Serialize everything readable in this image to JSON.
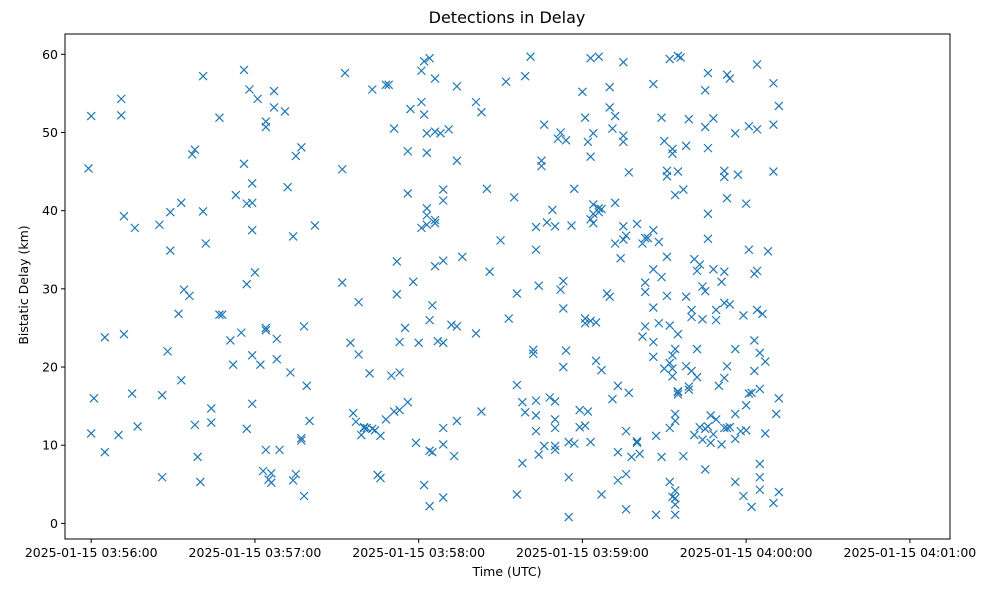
{
  "chart_data": {
    "type": "scatter",
    "title": "Detections in Delay",
    "xlabel": "Time (UTC)",
    "ylabel": "Bistatic Delay (km)",
    "x_unit": "seconds after 2025-01-15 03:56:00 UTC",
    "xlim": [
      -9.6,
      314.7
    ],
    "ylim": [
      -2.0,
      62.6
    ],
    "x_ticks": [
      {
        "value": 0,
        "label": "2025-01-15 03:56:00"
      },
      {
        "value": 60,
        "label": "2025-01-15 03:57:00"
      },
      {
        "value": 120,
        "label": "2025-01-15 03:58:00"
      },
      {
        "value": 180,
        "label": "2025-01-15 03:59:00"
      },
      {
        "value": 240,
        "label": "2025-01-15 04:00:00"
      },
      {
        "value": 300,
        "label": "2025-01-15 04:01:00"
      }
    ],
    "y_ticks": [
      {
        "value": 0,
        "label": "0"
      },
      {
        "value": 10,
        "label": "10"
      },
      {
        "value": 20,
        "label": "20"
      },
      {
        "value": 30,
        "label": "30"
      },
      {
        "value": 40,
        "label": "40"
      },
      {
        "value": 50,
        "label": "50"
      },
      {
        "value": 60,
        "label": "60"
      }
    ],
    "grid": false,
    "marker": "x",
    "color": "#1f77b4",
    "points": [
      [
        -1,
        45.4
      ],
      [
        0,
        52.1
      ],
      [
        0,
        11.5
      ],
      [
        1,
        16
      ],
      [
        5,
        9.1
      ],
      [
        5,
        23.8
      ],
      [
        10,
        11.3
      ],
      [
        11,
        54.3
      ],
      [
        11,
        52.2
      ],
      [
        12,
        24.2
      ],
      [
        12,
        39.3
      ],
      [
        15,
        16.6
      ],
      [
        16,
        37.8
      ],
      [
        17,
        12.4
      ],
      [
        25,
        38.2
      ],
      [
        26,
        16.4
      ],
      [
        26,
        5.9
      ],
      [
        28,
        22
      ],
      [
        29,
        39.8
      ],
      [
        29,
        34.9
      ],
      [
        32,
        26.8
      ],
      [
        33,
        41
      ],
      [
        33,
        18.3
      ],
      [
        34,
        29.9
      ],
      [
        36,
        29.1
      ],
      [
        37,
        47.2
      ],
      [
        38,
        47.8
      ],
      [
        38,
        12.6
      ],
      [
        39,
        8.5
      ],
      [
        40,
        5.3
      ],
      [
        41,
        39.9
      ],
      [
        41,
        57.2
      ],
      [
        42,
        35.8
      ],
      [
        44,
        12.9
      ],
      [
        44,
        14.7
      ],
      [
        47,
        51.9
      ],
      [
        47,
        26.7
      ],
      [
        48,
        26.7
      ],
      [
        51,
        23.4
      ],
      [
        52,
        20.3
      ],
      [
        53,
        42
      ],
      [
        55,
        24.4
      ],
      [
        56,
        58
      ],
      [
        56,
        46
      ],
      [
        57,
        12.1
      ],
      [
        57,
        30.6
      ],
      [
        57,
        40.9
      ],
      [
        58,
        55.5
      ],
      [
        59,
        37.5
      ],
      [
        59,
        43.5
      ],
      [
        59,
        41
      ],
      [
        59,
        21.5
      ],
      [
        59,
        15.3
      ],
      [
        60,
        32.1
      ],
      [
        61,
        54.3
      ],
      [
        62,
        20.3
      ],
      [
        63,
        6.7
      ],
      [
        64,
        51.4
      ],
      [
        64,
        50.7
      ],
      [
        64,
        24.7
      ],
      [
        64,
        25
      ],
      [
        64,
        9.4
      ],
      [
        65,
        5.6
      ],
      [
        66,
        6.4
      ],
      [
        66,
        5.2
      ],
      [
        67,
        55.3
      ],
      [
        67,
        53.2
      ],
      [
        68,
        23.6
      ],
      [
        68,
        21
      ],
      [
        69,
        9.4
      ],
      [
        71,
        52.7
      ],
      [
        72,
        43
      ],
      [
        73,
        19.3
      ],
      [
        74,
        36.7
      ],
      [
        74,
        5.5
      ],
      [
        75,
        47
      ],
      [
        75,
        6.3
      ],
      [
        77,
        48.1
      ],
      [
        77,
        10.9
      ],
      [
        77,
        10.6
      ],
      [
        78,
        3.5
      ],
      [
        78,
        25.2
      ],
      [
        79,
        17.6
      ],
      [
        80,
        13.1
      ],
      [
        82,
        38.1
      ],
      [
        92,
        45.3
      ],
      [
        92,
        30.8
      ],
      [
        93,
        57.6
      ],
      [
        95,
        23.1
      ],
      [
        96,
        14.1
      ],
      [
        97,
        13
      ],
      [
        98,
        21.6
      ],
      [
        98,
        28.3
      ],
      [
        99,
        11.3
      ],
      [
        100,
        12.3
      ],
      [
        100,
        12.2
      ],
      [
        101,
        12.2
      ],
      [
        102,
        19.2
      ],
      [
        103,
        12.1
      ],
      [
        103,
        55.5
      ],
      [
        104,
        11.9
      ],
      [
        105,
        6.2
      ],
      [
        106,
        5.8
      ],
      [
        106,
        11.2
      ],
      [
        108,
        56.1
      ],
      [
        108,
        13.3
      ],
      [
        109,
        56.1
      ],
      [
        110,
        18.9
      ],
      [
        111,
        14.3
      ],
      [
        111,
        50.5
      ],
      [
        112,
        33.5
      ],
      [
        112,
        29.3
      ],
      [
        113,
        14.5
      ],
      [
        113,
        23.2
      ],
      [
        113,
        19.3
      ],
      [
        115,
        25
      ],
      [
        116,
        15.5
      ],
      [
        116,
        47.6
      ],
      [
        116,
        42.2
      ],
      [
        117,
        53
      ],
      [
        118,
        30.9
      ],
      [
        119,
        10.3
      ],
      [
        120,
        23.1
      ],
      [
        121,
        53.9
      ],
      [
        121,
        37.8
      ],
      [
        121,
        57.9
      ],
      [
        122,
        4.9
      ],
      [
        122,
        59.1
      ],
      [
        122,
        52.3
      ],
      [
        123,
        47.4
      ],
      [
        123,
        49.9
      ],
      [
        123,
        40.3
      ],
      [
        123,
        39.4
      ],
      [
        123,
        38.2
      ],
      [
        124,
        59.5
      ],
      [
        124,
        2.2
      ],
      [
        124,
        26
      ],
      [
        124,
        9.3
      ],
      [
        125,
        27.9
      ],
      [
        125,
        9.1
      ],
      [
        126,
        38.8
      ],
      [
        126,
        56.9
      ],
      [
        126,
        50.1
      ],
      [
        126,
        38.4
      ],
      [
        126,
        32.9
      ],
      [
        127,
        23.3
      ],
      [
        128,
        49.9
      ],
      [
        129,
        23.1
      ],
      [
        129,
        10.1
      ],
      [
        129,
        42.7
      ],
      [
        129,
        41.3
      ],
      [
        129,
        33.6
      ],
      [
        129,
        12.2
      ],
      [
        129,
        3.3
      ],
      [
        131,
        50.4
      ],
      [
        132,
        25.4
      ],
      [
        133,
        8.6
      ],
      [
        134,
        13.1
      ],
      [
        134,
        25.2
      ],
      [
        134,
        46.4
      ],
      [
        134,
        55.9
      ],
      [
        136,
        34.1
      ],
      [
        141,
        24.3
      ],
      [
        141,
        53.9
      ],
      [
        143,
        14.3
      ],
      [
        143,
        52.6
      ],
      [
        145,
        42.8
      ],
      [
        146,
        32.2
      ],
      [
        150,
        36.2
      ],
      [
        152,
        56.5
      ],
      [
        153,
        26.2
      ],
      [
        155,
        41.7
      ],
      [
        156,
        29.4
      ],
      [
        156,
        17.7
      ],
      [
        156,
        3.7
      ],
      [
        158,
        7.7
      ],
      [
        158,
        15.5
      ],
      [
        159,
        14.2
      ],
      [
        159,
        57.2
      ],
      [
        161,
        59.7
      ],
      [
        162,
        22.2
      ],
      [
        162,
        21.7
      ],
      [
        163,
        35
      ],
      [
        163,
        11.8
      ],
      [
        163,
        15.7
      ],
      [
        163,
        13.8
      ],
      [
        163,
        37.9
      ],
      [
        164,
        8.8
      ],
      [
        164,
        30.4
      ],
      [
        165,
        46.4
      ],
      [
        165,
        45.7
      ],
      [
        166,
        9.9
      ],
      [
        166,
        51
      ],
      [
        167,
        38.5
      ],
      [
        168,
        16.1
      ],
      [
        169,
        40.1
      ],
      [
        170,
        15.6
      ],
      [
        170,
        12.2
      ],
      [
        170,
        9.9
      ],
      [
        170,
        9.4
      ],
      [
        170,
        38
      ],
      [
        170,
        13.3
      ],
      [
        171,
        49.2
      ],
      [
        172,
        50
      ],
      [
        172,
        29.9
      ],
      [
        173,
        31
      ],
      [
        173,
        20
      ],
      [
        173,
        27.5
      ],
      [
        174,
        49
      ],
      [
        174,
        22.1
      ],
      [
        175,
        10.4
      ],
      [
        175,
        5.9
      ],
      [
        175,
        0.8
      ],
      [
        176,
        38.1
      ],
      [
        177,
        10.2
      ],
      [
        177,
        42.8
      ],
      [
        179,
        14.5
      ],
      [
        179,
        12.3
      ],
      [
        180,
        55.2
      ],
      [
        181,
        51.9
      ],
      [
        181,
        12.5
      ],
      [
        181,
        25.6
      ],
      [
        181,
        26.2
      ],
      [
        182,
        48.8
      ],
      [
        182,
        14.3
      ],
      [
        183,
        38.9
      ],
      [
        183,
        59.5
      ],
      [
        183,
        25.9
      ],
      [
        183,
        10.4
      ],
      [
        183,
        46.9
      ],
      [
        184,
        38.4
      ],
      [
        184,
        39.6
      ],
      [
        184,
        40.8
      ],
      [
        184,
        49.9
      ],
      [
        185,
        20.8
      ],
      [
        185,
        25.7
      ],
      [
        186,
        59.7
      ],
      [
        186,
        39.8
      ],
      [
        186,
        40.3
      ],
      [
        187,
        3.7
      ],
      [
        187,
        40.2
      ],
      [
        187,
        19.6
      ],
      [
        189,
        29.4
      ],
      [
        190,
        55.8
      ],
      [
        190,
        29
      ],
      [
        190,
        53.2
      ],
      [
        191,
        15.9
      ],
      [
        191,
        50.5
      ],
      [
        192,
        52.1
      ],
      [
        192,
        35.8
      ],
      [
        192,
        41
      ],
      [
        193,
        17.6
      ],
      [
        193,
        9.1
      ],
      [
        193,
        5.5
      ],
      [
        194,
        33.9
      ],
      [
        195,
        38
      ],
      [
        195,
        59
      ],
      [
        195,
        36.3
      ],
      [
        195,
        48.8
      ],
      [
        195,
        49.6
      ],
      [
        196,
        11.8
      ],
      [
        196,
        36.8
      ],
      [
        196,
        1.8
      ],
      [
        196,
        6.3
      ],
      [
        197,
        16.7
      ],
      [
        197,
        44.9
      ],
      [
        198,
        8.5
      ],
      [
        200,
        10.3
      ],
      [
        200,
        10.5
      ],
      [
        200,
        38.3
      ],
      [
        201,
        8.9
      ],
      [
        202,
        35.8
      ],
      [
        202,
        23.9
      ],
      [
        203,
        25.2
      ],
      [
        203,
        36.5
      ],
      [
        203,
        30.8
      ],
      [
        203,
        29.6
      ],
      [
        204,
        36.5
      ],
      [
        206,
        56.2
      ],
      [
        206,
        27.6
      ],
      [
        206,
        21.3
      ],
      [
        206,
        23.2
      ],
      [
        206,
        37.5
      ],
      [
        206,
        32.5
      ],
      [
        207,
        1.1
      ],
      [
        207,
        11.2
      ],
      [
        208,
        36
      ],
      [
        208,
        25.6
      ],
      [
        209,
        51.9
      ],
      [
        209,
        31.5
      ],
      [
        209,
        8.5
      ],
      [
        210,
        48.9
      ],
      [
        210,
        19.8
      ],
      [
        211,
        45.1
      ],
      [
        211,
        44.4
      ],
      [
        211,
        34.1
      ],
      [
        211,
        29.1
      ],
      [
        212,
        59.4
      ],
      [
        212,
        25.3
      ],
      [
        212,
        20.5
      ],
      [
        212,
        12.2
      ],
      [
        212,
        5.3
      ],
      [
        213,
        47.9
      ],
      [
        213,
        47.3
      ],
      [
        213,
        19.8
      ],
      [
        213,
        21.5
      ],
      [
        213,
        18.8
      ],
      [
        213,
        3.4
      ],
      [
        214,
        42
      ],
      [
        214,
        22.3
      ],
      [
        214,
        14
      ],
      [
        214,
        13.1
      ],
      [
        214,
        4.2
      ],
      [
        214,
        3.2
      ],
      [
        214,
        2.4
      ],
      [
        214,
        1.1
      ],
      [
        215,
        59.8
      ],
      [
        215,
        45
      ],
      [
        215,
        24.2
      ],
      [
        215,
        16.8
      ],
      [
        215,
        16.5
      ],
      [
        215,
        16.9
      ],
      [
        216,
        59.6
      ],
      [
        217,
        42.7
      ],
      [
        217,
        8.6
      ],
      [
        218,
        48.3
      ],
      [
        218,
        29
      ],
      [
        218,
        20.1
      ],
      [
        219,
        51.7
      ],
      [
        219,
        17.5
      ],
      [
        219,
        17.1
      ],
      [
        220,
        27.3
      ],
      [
        220,
        26.4
      ],
      [
        220,
        19.5
      ],
      [
        221,
        11.3
      ],
      [
        221,
        33.8
      ],
      [
        222,
        32.3
      ],
      [
        222,
        18.7
      ],
      [
        222,
        22.3
      ],
      [
        223,
        33.1
      ],
      [
        223,
        12.3
      ],
      [
        224,
        10.7
      ],
      [
        224,
        30.3
      ],
      [
        224,
        26.1
      ],
      [
        225,
        55.4
      ],
      [
        225,
        50.7
      ],
      [
        225,
        29.7
      ],
      [
        225,
        12.1
      ],
      [
        225,
        6.9
      ],
      [
        226,
        36.4
      ],
      [
        226,
        12.4
      ],
      [
        226,
        57.6
      ],
      [
        226,
        48
      ],
      [
        226,
        39.6
      ],
      [
        227,
        13.8
      ],
      [
        227,
        10.3
      ],
      [
        228,
        11.4
      ],
      [
        228,
        51.8
      ],
      [
        228,
        32.5
      ],
      [
        229,
        27.3
      ],
      [
        229,
        26
      ],
      [
        229,
        13.3
      ],
      [
        230,
        17.6
      ],
      [
        231,
        30.9
      ],
      [
        231,
        10.1
      ],
      [
        232,
        45.1
      ],
      [
        232,
        44.3
      ],
      [
        232,
        32.2
      ],
      [
        232,
        28.2
      ],
      [
        232,
        18.6
      ],
      [
        232,
        12.2
      ],
      [
        233,
        57.4
      ],
      [
        233,
        41.6
      ],
      [
        233,
        12.2
      ],
      [
        233,
        20.1
      ],
      [
        234,
        56.9
      ],
      [
        234,
        28
      ],
      [
        234,
        12.3
      ],
      [
        236,
        49.9
      ],
      [
        236,
        22.3
      ],
      [
        236,
        14
      ],
      [
        236,
        10.8
      ],
      [
        236,
        5.3
      ],
      [
        237,
        44.6
      ],
      [
        238,
        11.8
      ],
      [
        239,
        3.5
      ],
      [
        239,
        26.6
      ],
      [
        240,
        40.9
      ],
      [
        240,
        11.9
      ],
      [
        240,
        15.1
      ],
      [
        241,
        50.8
      ],
      [
        241,
        35
      ],
      [
        241,
        16.6
      ],
      [
        242,
        16.7
      ],
      [
        242,
        2.1
      ],
      [
        243,
        23.4
      ],
      [
        243,
        19.5
      ],
      [
        243,
        31.9
      ],
      [
        244,
        32.3
      ],
      [
        244,
        58.7
      ],
      [
        244,
        27.3
      ],
      [
        244,
        50.4
      ],
      [
        245,
        17.2
      ],
      [
        245,
        21.8
      ],
      [
        245,
        7.6
      ],
      [
        245,
        5.9
      ],
      [
        245,
        4.3
      ],
      [
        246,
        26.8
      ],
      [
        247,
        20.7
      ],
      [
        247,
        11.5
      ],
      [
        248,
        34.8
      ],
      [
        250,
        56.3
      ],
      [
        250,
        51
      ],
      [
        250,
        45
      ],
      [
        250,
        2.6
      ],
      [
        251,
        14
      ],
      [
        252,
        16
      ],
      [
        252,
        53.4
      ],
      [
        252,
        4
      ]
    ]
  }
}
